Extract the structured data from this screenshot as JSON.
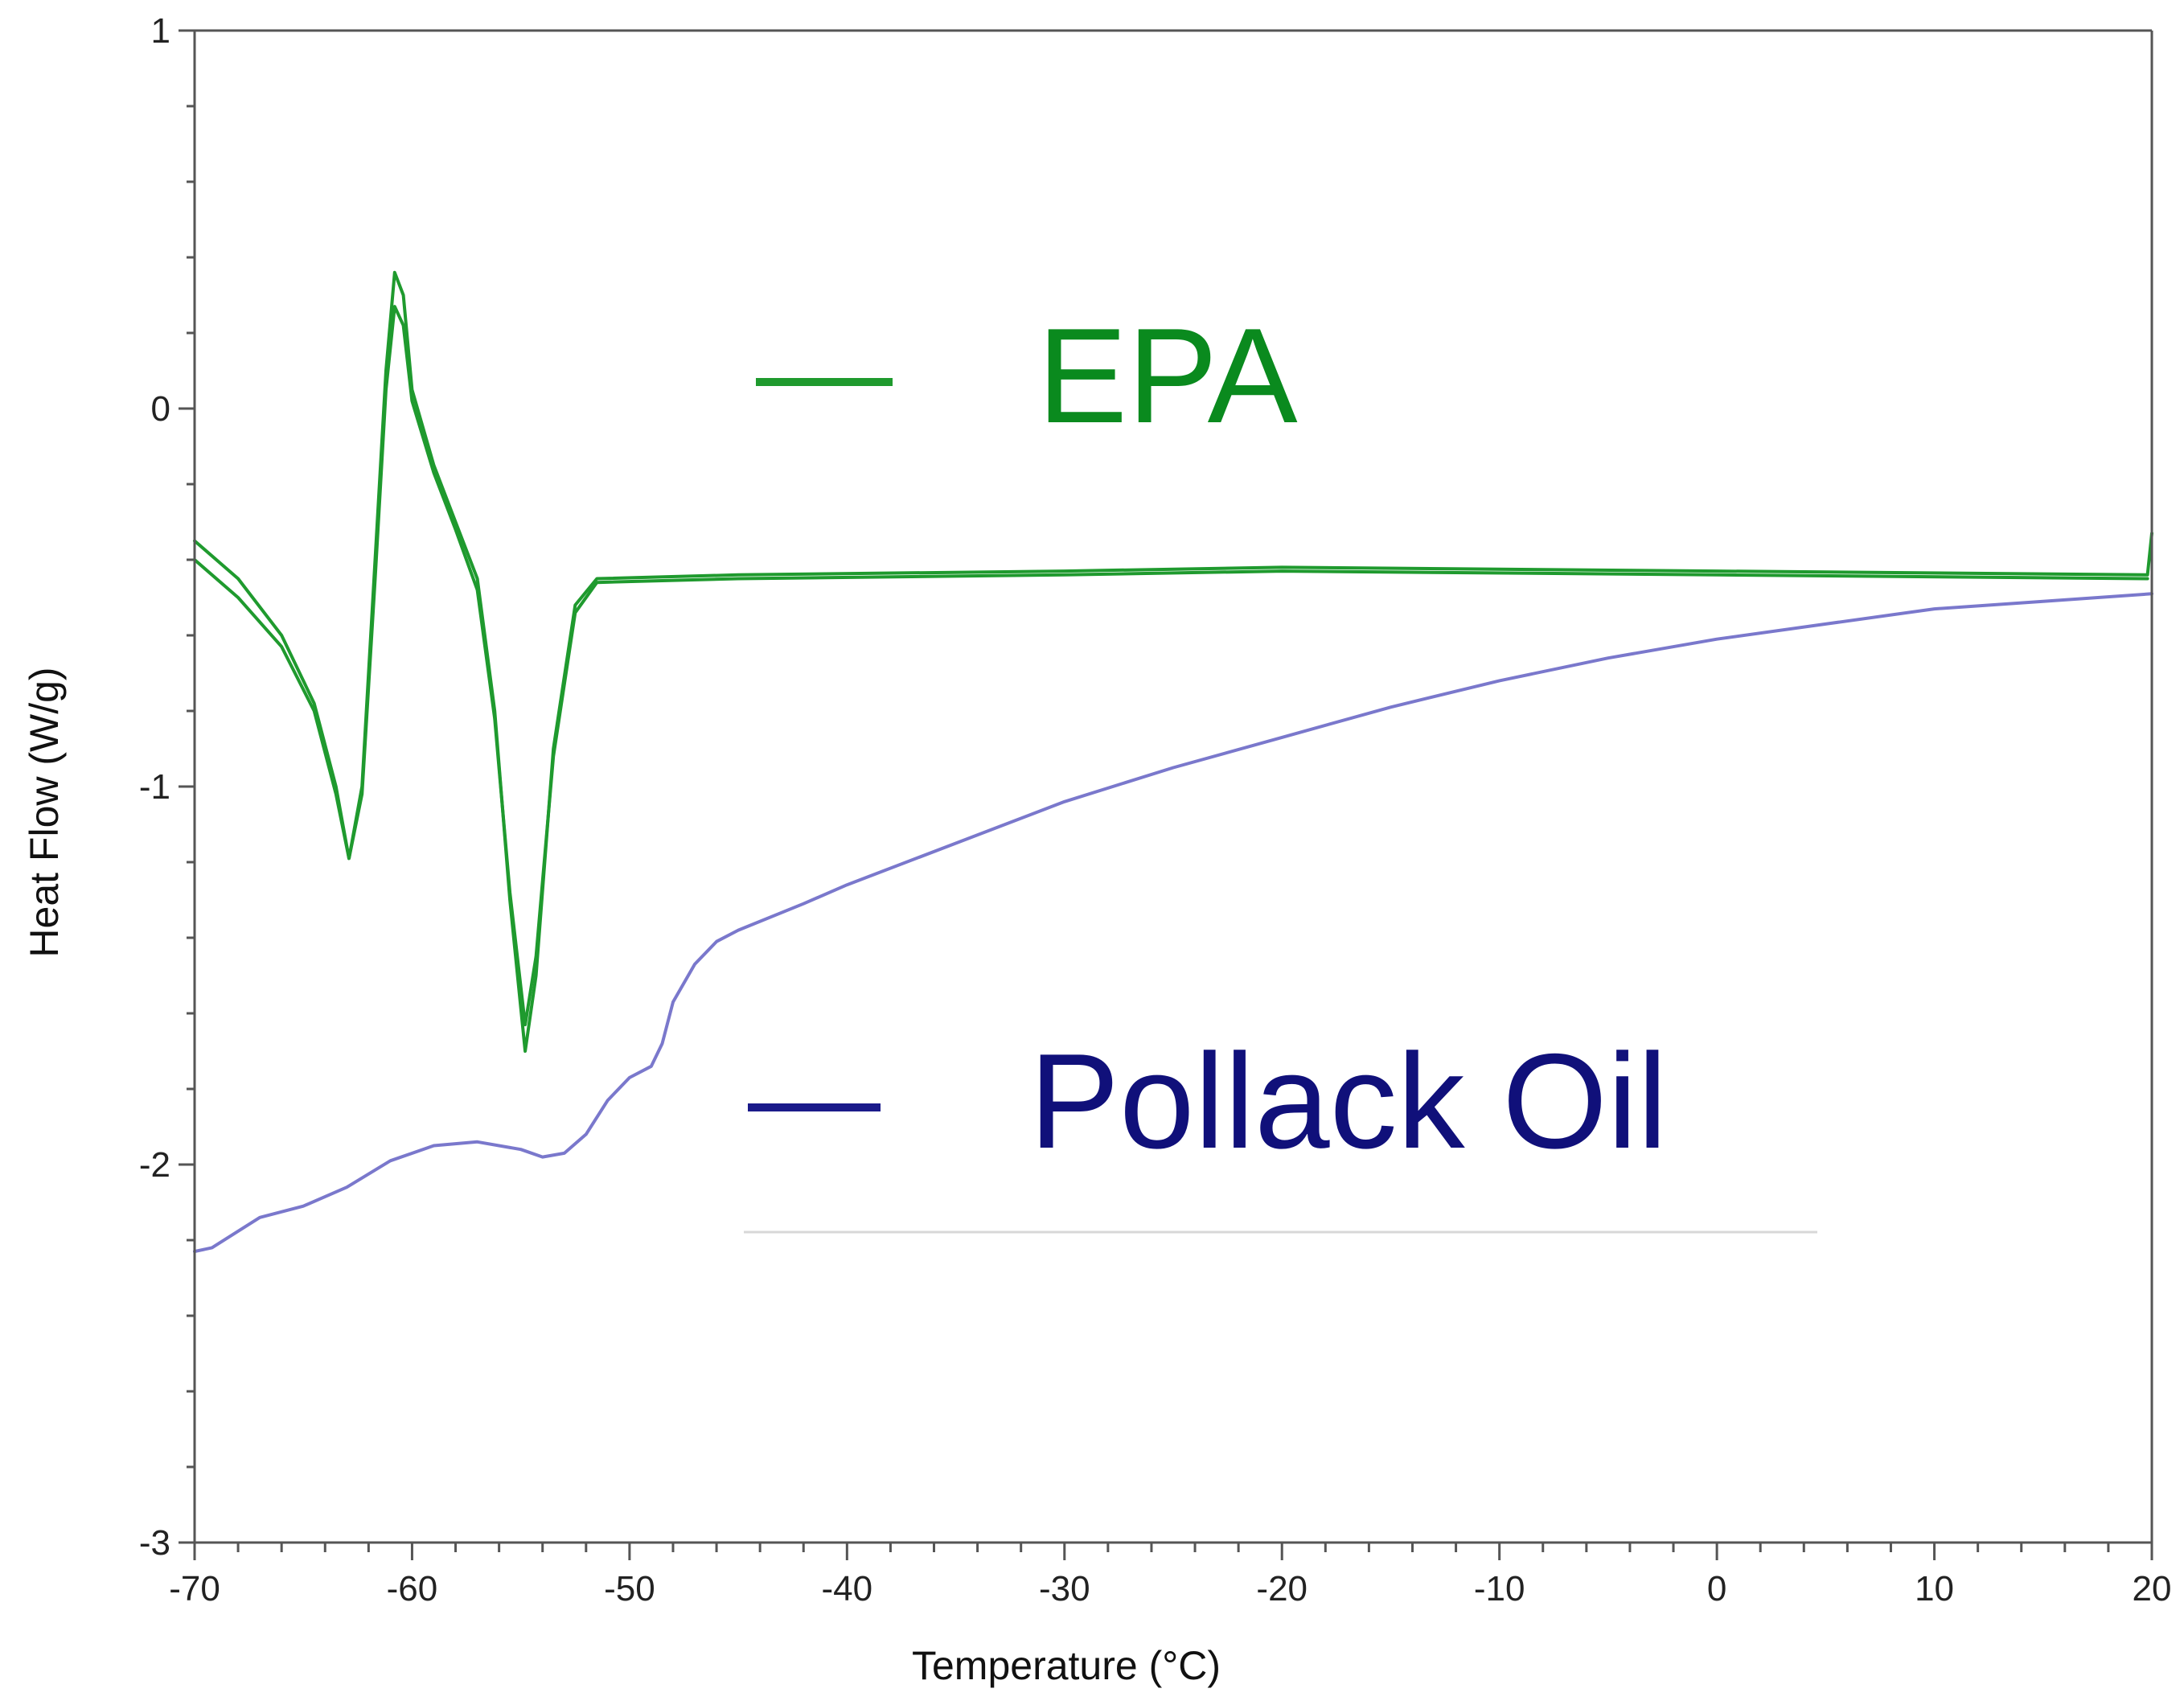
{
  "chart_data": {
    "type": "line",
    "title": "",
    "xlabel": "Temperature (°C)",
    "ylabel": "Heat Flow (W/g)",
    "xlim": [
      -70,
      20
    ],
    "ylim": [
      -3,
      1
    ],
    "x_ticks": [
      -70,
      -60,
      -50,
      -40,
      -30,
      -20,
      -10,
      0,
      10,
      20
    ],
    "y_ticks": [
      -3,
      -2,
      -1,
      0,
      1
    ],
    "x_tick_labels": [
      "-70",
      "-60",
      "-50",
      "-40",
      "-30",
      "-20",
      "-10",
      "0",
      "10",
      "20"
    ],
    "y_tick_labels": [
      "-3",
      "-2",
      "-1",
      "0",
      "1"
    ],
    "grid": false,
    "legend_position": "inside",
    "series": [
      {
        "name": "EPA",
        "color": "#1f9a2e",
        "points": [
          [
            -70,
            -0.35
          ],
          [
            -68,
            -0.45
          ],
          [
            -66,
            -0.6
          ],
          [
            -64.5,
            -0.78
          ],
          [
            -63.5,
            -1.0
          ],
          [
            -62.9,
            -1.19
          ],
          [
            -62.3,
            -1.0
          ],
          [
            -61.7,
            -0.4
          ],
          [
            -61.2,
            0.1
          ],
          [
            -60.8,
            0.36
          ],
          [
            -60.4,
            0.3
          ],
          [
            -60,
            0.05
          ],
          [
            -59,
            -0.15
          ],
          [
            -58,
            -0.3
          ],
          [
            -57,
            -0.45
          ],
          [
            -56.2,
            -0.8
          ],
          [
            -55.5,
            -1.3
          ],
          [
            -54.8,
            -1.7
          ],
          [
            -54.3,
            -1.5
          ],
          [
            -53.5,
            -0.9
          ],
          [
            -52.5,
            -0.52
          ],
          [
            -51.5,
            -0.45
          ],
          [
            -45,
            -0.44
          ],
          [
            -30,
            -0.43
          ],
          [
            -20,
            -0.42
          ],
          [
            0,
            -0.43
          ],
          [
            19.8,
            -0.44
          ],
          [
            20,
            -0.33
          ]
        ]
      },
      {
        "name": "EPA",
        "color": "#1f9a2e",
        "points": [
          [
            -70,
            -0.4
          ],
          [
            -68,
            -0.5
          ],
          [
            -66,
            -0.63
          ],
          [
            -64.5,
            -0.8
          ],
          [
            -63.5,
            -1.02
          ],
          [
            -62.9,
            -1.19
          ],
          [
            -62.3,
            -1.02
          ],
          [
            -61.7,
            -0.45
          ],
          [
            -61.2,
            0.05
          ],
          [
            -60.8,
            0.27
          ],
          [
            -60.4,
            0.22
          ],
          [
            -60,
            0.02
          ],
          [
            -59,
            -0.17
          ],
          [
            -58,
            -0.32
          ],
          [
            -57,
            -0.48
          ],
          [
            -56.2,
            -0.82
          ],
          [
            -55.5,
            -1.28
          ],
          [
            -54.8,
            -1.63
          ],
          [
            -54.3,
            -1.45
          ],
          [
            -53.5,
            -0.92
          ],
          [
            -52.5,
            -0.54
          ],
          [
            -51.5,
            -0.46
          ],
          [
            -45,
            -0.45
          ],
          [
            -30,
            -0.44
          ],
          [
            -20,
            -0.43
          ],
          [
            0,
            -0.44
          ],
          [
            19.8,
            -0.45
          ]
        ]
      },
      {
        "name": "Pollack Oil",
        "color": "#7a78cc",
        "points": [
          [
            -70,
            -2.23
          ],
          [
            -69.2,
            -2.22
          ],
          [
            -67,
            -2.14
          ],
          [
            -65,
            -2.11
          ],
          [
            -63,
            -2.06
          ],
          [
            -61,
            -1.99
          ],
          [
            -59,
            -1.95
          ],
          [
            -57,
            -1.94
          ],
          [
            -55,
            -1.96
          ],
          [
            -54,
            -1.98
          ],
          [
            -53,
            -1.97
          ],
          [
            -52,
            -1.92
          ],
          [
            -51,
            -1.83
          ],
          [
            -50,
            -1.77
          ],
          [
            -49,
            -1.74
          ],
          [
            -48.5,
            -1.68
          ],
          [
            -48,
            -1.57
          ],
          [
            -47,
            -1.47
          ],
          [
            -46,
            -1.41
          ],
          [
            -45,
            -1.38
          ],
          [
            -42,
            -1.31
          ],
          [
            -40,
            -1.26
          ],
          [
            -35,
            -1.15
          ],
          [
            -30,
            -1.04
          ],
          [
            -25,
            -0.95
          ],
          [
            -20,
            -0.87
          ],
          [
            -15,
            -0.79
          ],
          [
            -10,
            -0.72
          ],
          [
            -5,
            -0.66
          ],
          [
            0,
            -0.61
          ],
          [
            5,
            -0.57
          ],
          [
            10,
            -0.53
          ],
          [
            15,
            -0.51
          ],
          [
            20,
            -0.49
          ]
        ]
      }
    ],
    "legend": [
      {
        "label": "EPA",
        "color": "#1f9a2e",
        "text_color": "#0a8a1e"
      },
      {
        "label": "Pollack Oil",
        "color": "#1a1a8a",
        "text_color": "#10107a"
      }
    ]
  }
}
